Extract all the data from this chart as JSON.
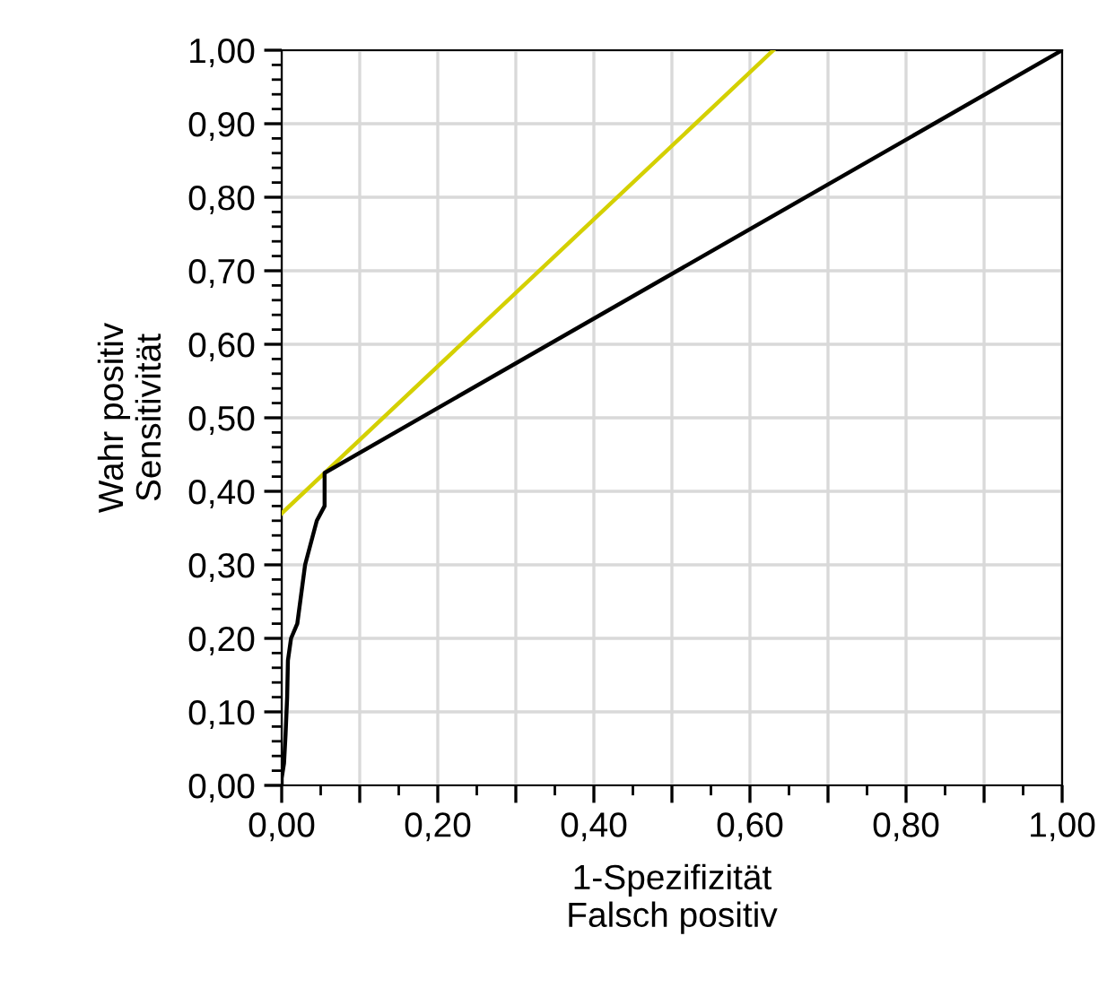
{
  "chart_data": {
    "type": "line",
    "xlabel": "1-Spezifizität\nFalsch positiv",
    "ylabel": "Wahr positiv\nSensitivität",
    "series": [
      {
        "color": "#d4d000",
        "x": [
          0,
          0.63
        ],
        "values": [
          0.37,
          1.0
        ]
      },
      {
        "color": "#000000",
        "x": [
          0,
          0,
          0.003,
          0.005,
          0.007,
          0.008,
          0.012,
          0.02,
          0.03,
          0.045,
          0.055,
          0.055,
          1.0
        ],
        "values": [
          0,
          0.01,
          0.03,
          0.07,
          0.12,
          0.17,
          0.2,
          0.22,
          0.3,
          0.36,
          0.38,
          0.425,
          1.0
        ]
      }
    ],
    "xlim": [
      0,
      1
    ],
    "ylim": [
      0,
      1
    ],
    "xticks": [
      {
        "value": 0,
        "label": "0,00"
      },
      {
        "value": 0.1,
        "label": null
      },
      {
        "value": 0.2,
        "label": "0,20"
      },
      {
        "value": 0.3,
        "label": null
      },
      {
        "value": 0.4,
        "label": "0,40"
      },
      {
        "value": 0.5,
        "label": null
      },
      {
        "value": 0.6,
        "label": "0,60"
      },
      {
        "value": 0.7,
        "label": null
      },
      {
        "value": 0.8,
        "label": "0,80"
      },
      {
        "value": 0.9,
        "label": null
      },
      {
        "value": 1,
        "label": "1,00"
      }
    ],
    "yticks": [
      {
        "value": 0,
        "label": "0,00"
      },
      {
        "value": 0.1,
        "label": "0,10"
      },
      {
        "value": 0.2,
        "label": "0,20"
      },
      {
        "value": 0.3,
        "label": "0,30"
      },
      {
        "value": 0.4,
        "label": "0,40"
      },
      {
        "value": 0.5,
        "label": "0,50"
      },
      {
        "value": 0.6,
        "label": "0,60"
      },
      {
        "value": 0.7,
        "label": "0,70"
      },
      {
        "value": 0.8,
        "label": "0,80"
      },
      {
        "value": 0.9,
        "label": "0,90"
      },
      {
        "value": 1,
        "label": "1,00"
      }
    ],
    "grid": true,
    "marker": "none",
    "line_style": "solid"
  }
}
